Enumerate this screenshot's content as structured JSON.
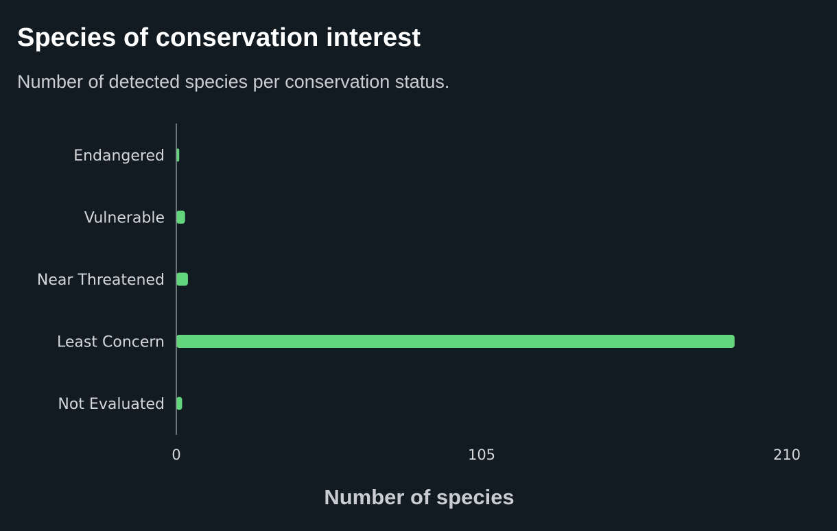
{
  "title": "Species of conservation interest",
  "subtitle": "Number of detected species per conservation status.",
  "chart_data": {
    "type": "bar",
    "orientation": "horizontal",
    "title": "Species of conservation interest",
    "subtitle": "Number of detected species per conservation status.",
    "categories": [
      "Endangered",
      "Vulnerable",
      "Near Threatened",
      "Least Concern",
      "Not Evaluated"
    ],
    "values": [
      1,
      3,
      4,
      192,
      2
    ],
    "xlabel": "Number of species",
    "ylabel": "",
    "xlim": [
      0,
      210
    ],
    "xticks": [
      0,
      105,
      210
    ],
    "xtick_labels": [
      "0",
      "105",
      "210"
    ],
    "grid": false,
    "bar_color": "#63d67d"
  },
  "colors": {
    "background": "#121b22",
    "bar": "#63d67d",
    "axis_line": "#8a9096",
    "text": "#d4d7da"
  }
}
